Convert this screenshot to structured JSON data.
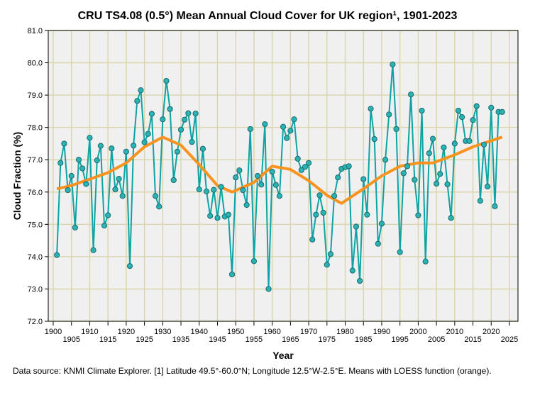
{
  "chart_data": {
    "type": "line",
    "title": "CRU TS4.08 (0.5°) Mean Annual Cloud Cover for UK region¹, 1901-2023",
    "xlabel": "Year",
    "ylabel": "Cloud Fraction (%)",
    "xlim": [
      1899,
      2026
    ],
    "ylim": [
      72.0,
      81.0
    ],
    "xticks": [
      1900,
      1905,
      1910,
      1915,
      1920,
      1925,
      1930,
      1935,
      1940,
      1945,
      1950,
      1955,
      1960,
      1965,
      1970,
      1975,
      1980,
      1985,
      1990,
      1995,
      2000,
      2005,
      2010,
      2015,
      2020,
      2025
    ],
    "yticks": [
      "72.0",
      "73.0",
      "74.0",
      "75.0",
      "76.0",
      "77.0",
      "78.0",
      "79.0",
      "80.0",
      "81.0"
    ],
    "grid": true,
    "x_start": 1901,
    "series": [
      {
        "name": "Mean annual cloud cover",
        "color": "#0fa3a3",
        "values": [
          74.05,
          76.9,
          77.5,
          76.06,
          76.5,
          74.9,
          77.0,
          76.73,
          76.25,
          77.68,
          74.2,
          76.98,
          77.43,
          74.96,
          75.28,
          77.35,
          76.08,
          76.41,
          75.88,
          77.25,
          73.71,
          77.44,
          78.82,
          79.15,
          77.54,
          77.8,
          78.42,
          75.88,
          75.55,
          78.25,
          79.44,
          78.57,
          76.37,
          77.25,
          77.93,
          78.24,
          78.44,
          77.55,
          78.43,
          76.08,
          77.34,
          76.02,
          75.26,
          76.07,
          75.2,
          76.16,
          75.24,
          75.3,
          73.45,
          76.45,
          76.67,
          76.06,
          75.6,
          77.95,
          73.86,
          76.5,
          76.23,
          78.1,
          73.0,
          76.63,
          76.22,
          75.88,
          78.02,
          77.67,
          77.9,
          78.25,
          77.03,
          76.68,
          76.78,
          76.9,
          74.53,
          75.3,
          75.9,
          75.36,
          73.75,
          74.08,
          75.88,
          76.45,
          76.72,
          76.77,
          76.8,
          73.57,
          74.93,
          73.25,
          76.4,
          75.3,
          78.58,
          77.64,
          74.4,
          75.02,
          77.0,
          78.4,
          79.95,
          77.95,
          74.14,
          76.58,
          76.8,
          79.02,
          76.38,
          75.28,
          78.52,
          73.85,
          77.2,
          77.65,
          76.26,
          76.56,
          77.38,
          76.24,
          75.2,
          77.5,
          78.52,
          78.32,
          77.58,
          77.58,
          78.23,
          78.66,
          75.73,
          77.47,
          76.17,
          78.61,
          75.56,
          78.48,
          78.48
        ]
      },
      {
        "name": "LOESS",
        "color": "#f7931e",
        "x": [
          1901,
          1905,
          1910,
          1915,
          1920,
          1925,
          1930,
          1935,
          1940,
          1945,
          1949,
          1955,
          1960,
          1965,
          1970,
          1975,
          1979,
          1985,
          1990,
          1995,
          2000,
          2004,
          2010,
          2015,
          2023
        ],
        "values": [
          76.1,
          76.2,
          76.4,
          76.6,
          76.9,
          77.4,
          77.7,
          77.45,
          76.85,
          76.2,
          76.0,
          76.3,
          76.8,
          76.7,
          76.35,
          75.9,
          75.65,
          76.1,
          76.5,
          76.8,
          76.9,
          76.9,
          77.15,
          77.4,
          77.7
        ]
      }
    ],
    "note": "Data source: KNMI Climate Explorer. [1] Latitude 49.5°-60.0°N; Longitude 12.5°W-2.5°E. Means with LOESS function (orange)."
  }
}
